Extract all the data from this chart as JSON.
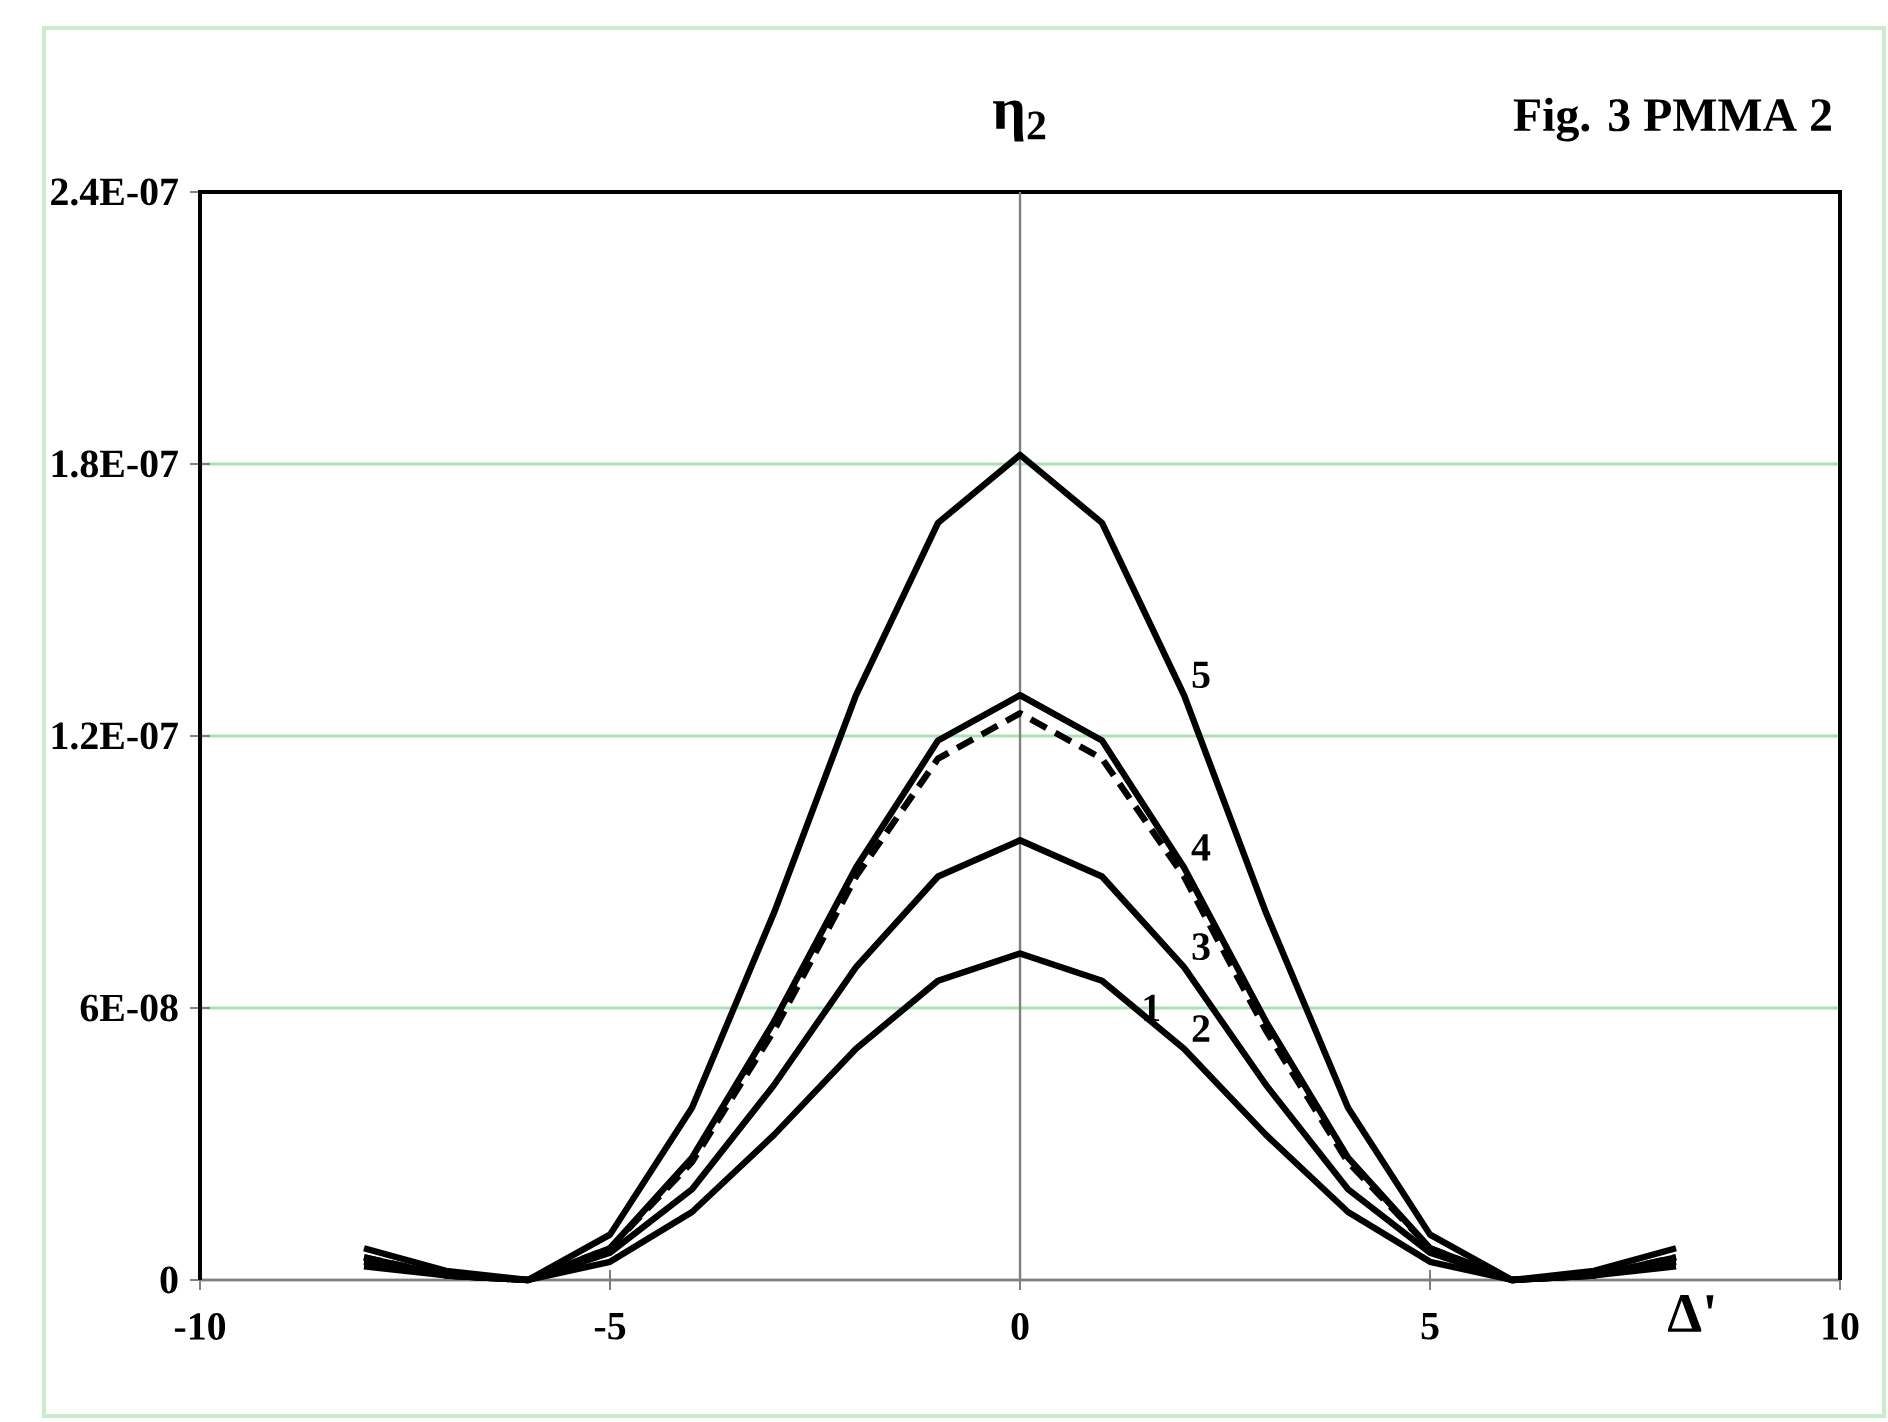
{
  "chart_data": {
    "type": "line",
    "title": "Fig. 3     PMMA 2",
    "xlabel": "Δ'",
    "ylabel": "η$_{2}$",
    "xlim": [
      -10,
      10
    ],
    "xticks": [
      -10,
      -5,
      0,
      5,
      10
    ],
    "ylim": [
      0,
      2.4e-07
    ],
    "yticks": [
      {
        "value": 0,
        "label": "0"
      },
      {
        "value": 6e-08,
        "label": "6E-08"
      },
      {
        "value": 1.2e-07,
        "label": "1.2E-07"
      },
      {
        "value": 1.8e-07,
        "label": "1.8E-07"
      },
      {
        "value": 2.4e-07,
        "label": "2.4E-07"
      }
    ],
    "grid": "y",
    "marker": "none",
    "x": [
      -8,
      -7,
      -6,
      -5,
      -4,
      -3,
      -2,
      -1,
      0,
      1,
      2,
      3,
      4,
      5,
      6,
      7,
      8
    ],
    "series": [
      {
        "name": "5",
        "color": "#000000",
        "line_style": "solid",
        "values": [
          7e-09,
          2e-09,
          0,
          1e-08,
          3.8e-08,
          8.1e-08,
          1.29e-07,
          1.67e-07,
          1.82e-07,
          1.67e-07,
          1.29e-07,
          8.1e-08,
          3.8e-08,
          1e-08,
          0,
          2e-09,
          7e-09
        ]
      },
      {
        "name": "4",
        "color": "#000000",
        "line_style": "solid",
        "values": [
          5e-09,
          1e-09,
          0,
          7e-09,
          2.7e-08,
          5.7e-08,
          9.1e-08,
          1.19e-07,
          1.29e-07,
          1.19e-07,
          9.1e-08,
          5.7e-08,
          2.7e-08,
          7e-09,
          0,
          1e-09,
          5e-09
        ]
      },
      {
        "color": "#000000",
        "line_style": "dashed",
        "values": [
          5e-09,
          1e-09,
          0,
          7e-09,
          2.6e-08,
          5.5e-08,
          8.9e-08,
          1.15e-07,
          1.25e-07,
          1.15e-07,
          8.9e-08,
          5.5e-08,
          2.6e-08,
          7e-09,
          0,
          1e-09,
          5e-09
        ]
      },
      {
        "name": "3",
        "color": "#000000",
        "line_style": "solid",
        "values": [
          4e-09,
          1e-09,
          0,
          6e-09,
          2e-08,
          4.3e-08,
          6.9e-08,
          8.9e-08,
          9.7e-08,
          8.9e-08,
          6.9e-08,
          4.3e-08,
          2e-08,
          6e-09,
          0,
          1e-09,
          4e-09
        ]
      },
      {
        "name": "2",
        "color": "#000000",
        "line_style": "solid",
        "values": [
          3e-09,
          1e-09,
          0,
          4e-09,
          1.5e-08,
          3.2e-08,
          5.1e-08,
          6.6e-08,
          7.2e-08,
          6.6e-08,
          5.1e-08,
          3.2e-08,
          1.5e-08,
          4e-09,
          0,
          1e-09,
          3e-09
        ]
      }
    ],
    "annotations": [
      "1"
    ]
  }
}
